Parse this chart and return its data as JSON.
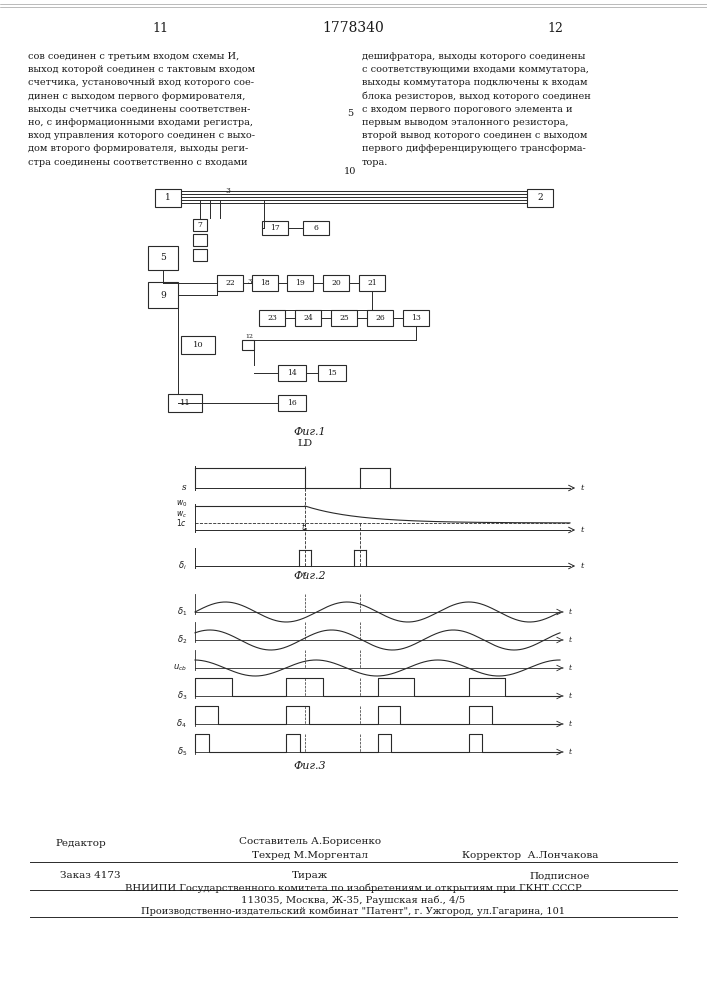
{
  "page_number_left": "11",
  "patent_number": "1778340",
  "page_number_right": "12",
  "text_left": "сов соединен с третьим входом схемы И,\nвыход которой соединен с тактовым входом\nсчетчика, установочный вход которого сое-\nдинен с выходом первого формирователя,\nвыходы счетчика соединены соответствен-\nно, с информационными входами регистра,\nвход управления которого соединен с выхо-\nдом второго формирователя, выходы реги-\nстра соединены соответственно с входами",
  "line_number": "5",
  "text_right": "дешифратора, выходы которого соединены\nс соответствующими входами коммутатора,\nвыходы коммутатора подключены к входам\nблока резисторов, выход которого соединен\nс входом первого порогового элемента и\nпервым выводом эталонного резистора,\nвторой вывод которого соединен с выходом\nпервого дифференцирующего трансформа-\nтора.",
  "line_number_bottom": "10",
  "fig1_label": "Фиг.1",
  "fig2_label": "Фиг.2",
  "fig3_label": "Фиг.3",
  "editor_label": "Редактор",
  "composer_label": "Составитель А.Борисенко",
  "techred_label": "Техред М.Моргентал",
  "corrector_label": "Корректор  А.Лончакова",
  "order_label": "Заказ 4173",
  "tiraz_label": "Тираж",
  "podpisnoe_label": "Подписное",
  "vniiipi_line1": "ВНИИПИ Государственного комитета по изобретениям и открытиям при ГКНТ СССР",
  "vniiipi_line2": "113035, Москва, Ж-35, Раушская наб., 4/5",
  "factory_line": "Производственно-издательский комбинат \"Патент\", г. Ужгород, ул.Гагарина, 101",
  "bg_color": "#ffffff",
  "text_color": "#1a1a1a",
  "line_color": "#2a2a2a"
}
